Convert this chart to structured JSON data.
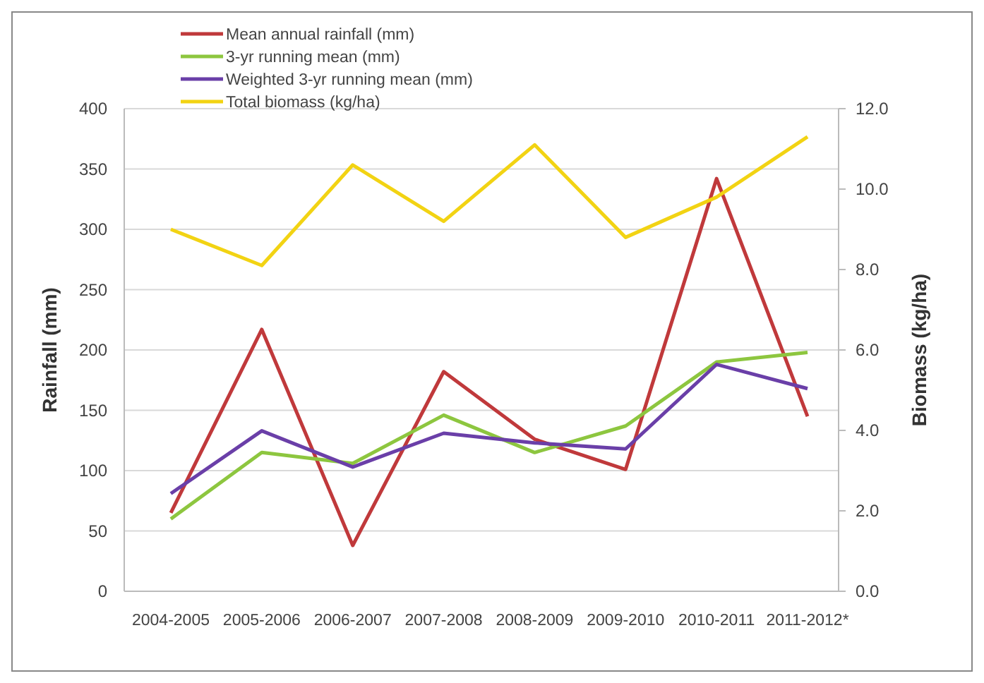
{
  "chart_data": {
    "type": "line",
    "categories": [
      "2004-2005",
      "2005-2006",
      "2006-2007",
      "2007-2008",
      "2008-2009",
      "2009-2010",
      "2010-2011",
      "2011-2012*"
    ],
    "series": [
      {
        "name": "Mean annual rainfall (mm)",
        "color": "#c0393b",
        "values": [
          65,
          217,
          38,
          182,
          126,
          101,
          342,
          145
        ]
      },
      {
        "name": "3-yr running mean (mm)",
        "color": "#8dc63f",
        "values": [
          60,
          115,
          106,
          146,
          115,
          137,
          190,
          198
        ]
      },
      {
        "name": "Weighted 3-yr running mean (mm)",
        "color": "#6a3fa8",
        "values": [
          81,
          133,
          103,
          131,
          123,
          118,
          188,
          168
        ]
      },
      {
        "name": "Total biomass (kg/ha)",
        "color": "#f2d313",
        "axis": "y2",
        "values": [
          9.0,
          8.1,
          10.6,
          9.2,
          11.1,
          8.8,
          9.8,
          11.3
        ]
      }
    ],
    "ylabel": "Rainfall (mm)",
    "y2label": "Biomass (kg/ha)",
    "ylim": [
      0,
      400
    ],
    "yticks": [
      0,
      50,
      100,
      150,
      200,
      250,
      300,
      350,
      400
    ],
    "y2lim": [
      0,
      12
    ],
    "y2ticks": [
      {
        "value": 0,
        "label": "0.0"
      },
      {
        "value": 2,
        "label": "2.0"
      },
      {
        "value": 4,
        "label": "4.0"
      },
      {
        "value": 6,
        "label": "6.0"
      },
      {
        "value": 8,
        "label": "8.0"
      },
      {
        "value": 10,
        "label": "10.0"
      },
      {
        "value": 12,
        "label": "12.0"
      }
    ],
    "grid": "y",
    "legend": "top left",
    "marker": "none",
    "line_style": "solid"
  }
}
